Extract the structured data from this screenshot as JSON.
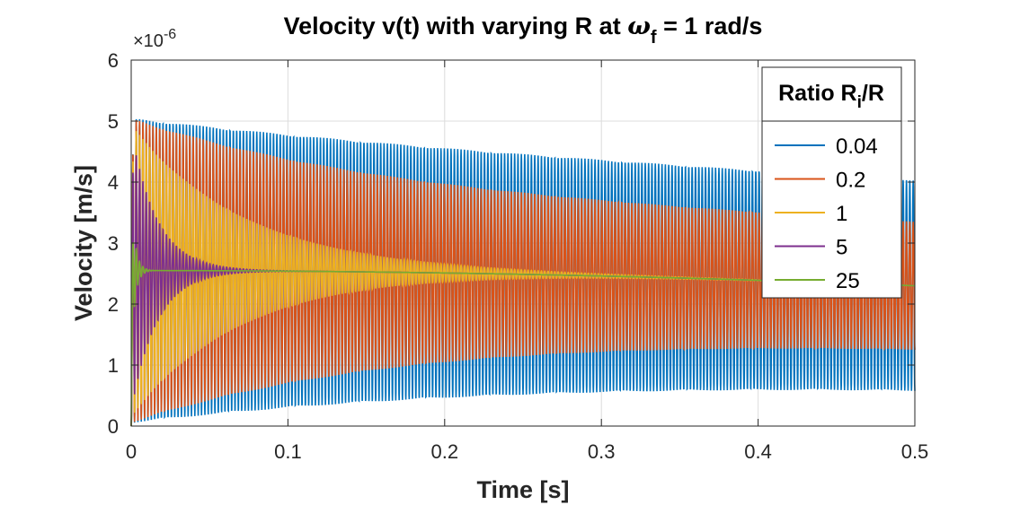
{
  "chart_data": {
    "type": "line",
    "title_main": "Velocity v(t) with varying R at ",
    "title_sym": "ω",
    "title_sub": "f",
    "title_rest": " = 1 rad/s",
    "xlabel": "Time [s]",
    "ylabel": "Velocity [m/s]",
    "y_multiplier": "×10",
    "y_multiplier_exp": "-6",
    "xlim": [
      0,
      0.5
    ],
    "ylim": [
      0,
      6
    ],
    "xticks": [
      "0",
      "0.1",
      "0.2",
      "0.3",
      "0.4",
      "0.5"
    ],
    "yticks": [
      "0",
      "1",
      "2",
      "3",
      "4",
      "5",
      "6"
    ],
    "grid": true,
    "legend": {
      "title_main": "Ratio R",
      "title_sub": "i",
      "title_rest": "/R",
      "position": "top-right"
    },
    "series": [
      {
        "name": "0.04",
        "color": "#0072BD",
        "mean": 2.55,
        "amp_start": 2.5,
        "amp_end": 1.5,
        "cycles": 117,
        "drift": -0.25
      },
      {
        "name": "0.2",
        "color": "#D95319",
        "mean": 2.55,
        "amp_start": 2.5,
        "amp_end": 0.95,
        "cycles": 117,
        "drift": -0.25
      },
      {
        "name": "1",
        "color": "#EDB120",
        "mean": 2.55,
        "amp_start": 2.4,
        "amp_end": 0.0,
        "cycles": 117,
        "drift": -0.25
      },
      {
        "name": "5",
        "color": "#7E2F8E",
        "mean": 2.55,
        "amp_start": 2.3,
        "amp_end": 0.0,
        "cycles": 117,
        "drift": -0.25
      },
      {
        "name": "25",
        "color": "#77AC30",
        "mean": 2.55,
        "amp_start": 1.3,
        "amp_end": 0.0,
        "cycles": 117,
        "drift": -0.25
      }
    ]
  }
}
